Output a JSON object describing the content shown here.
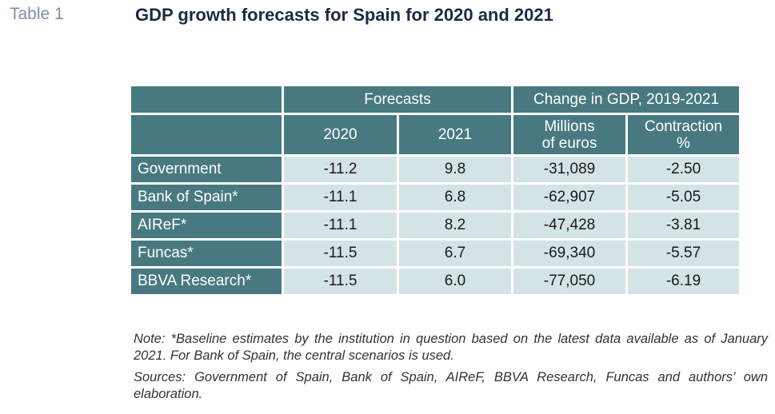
{
  "table_label": "Table 1",
  "title": "GDP growth forecasts for Spain for 2020 and 2021",
  "header": {
    "group_forecasts": "Forecasts",
    "group_change": "Change in GDP, 2019-2021",
    "col_2020": "2020",
    "col_2021": "2021",
    "col_millions_line1": "Millions",
    "col_millions_line2": "of euros",
    "col_contraction_line1": "Contraction",
    "col_contraction_line2": "%"
  },
  "rows": [
    {
      "label": "Government",
      "y2020": "-11.2",
      "y2021": "9.8",
      "millions": "-31,089",
      "contraction": "-2.50"
    },
    {
      "label": "Bank of Spain*",
      "y2020": "-11.1",
      "y2021": "6.8",
      "millions": "-62,907",
      "contraction": "-5.05"
    },
    {
      "label": "AIReF*",
      "y2020": "-11.1",
      "y2021": "8.2",
      "millions": "-47,428",
      "contraction": "-3.81"
    },
    {
      "label": "Funcas*",
      "y2020": "-11.5",
      "y2021": "6.7",
      "millions": "-69,340",
      "contraction": "-5.57"
    },
    {
      "label": "BBVA Research*",
      "y2020": "-11.5",
      "y2021": "6.0",
      "millions": "-77,050",
      "contraction": "-6.19"
    }
  ],
  "note": "Note: *Baseline estimates by the institution in question based on the latest data available as of January 2021. For Bank of Spain, the central scenarios is used.",
  "sources": "Sources: Government of Spain, Bank of Spain, AIReF, BBVA Research, Funcas and authors’ own elaboration.",
  "colors": {
    "header_bg": "#487980",
    "cell_bg": "#d4e3e6",
    "title": "#1d2a45",
    "table_label": "#7d8fa8"
  }
}
